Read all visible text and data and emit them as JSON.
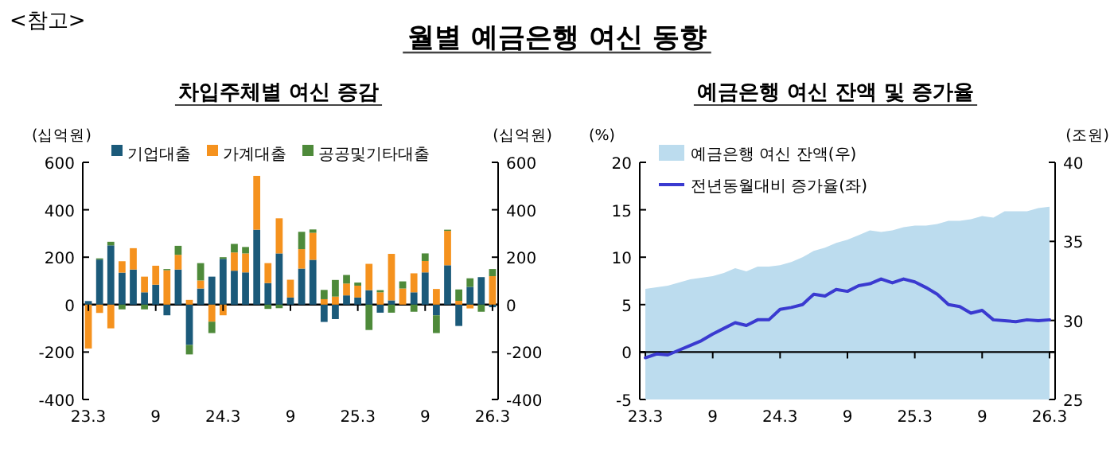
{
  "chart_data": [
    {
      "type": "other",
      "title": "월별 예금은행 여신 동향",
      "annotations": [
        "<참고>"
      ]
    },
    {
      "type": "bar",
      "title": "차입주체별 여신 증감",
      "stacked": true,
      "legend": "top",
      "ylabel": "(십억원)",
      "y2label": "(십억원)",
      "categories": [
        "23.3",
        null,
        null,
        null,
        null,
        null,
        "9",
        null,
        null,
        null,
        null,
        null,
        "24.3",
        null,
        null,
        null,
        null,
        null,
        "9",
        null,
        null,
        null,
        null,
        null,
        "25.3",
        null,
        null,
        null,
        null,
        null,
        "9",
        null,
        null,
        null,
        null,
        null,
        "26.3"
      ],
      "ylim": [
        -400,
        600
      ],
      "yticks": [
        -400,
        -200,
        0,
        200,
        400,
        600
      ],
      "y2lim": [
        -400,
        600
      ],
      "y2ticks": [
        -400,
        -200,
        0,
        200,
        400,
        600
      ],
      "series": [
        {
          "name": "기업대출",
          "color": "#1b5a7a",
          "values": [
            15,
            190,
            250,
            135,
            148,
            52,
            84,
            -45,
            148,
            -170,
            68,
            118,
            193,
            143,
            136,
            316,
            91,
            216,
            30,
            152,
            189,
            -73,
            -61,
            39,
            30,
            61,
            -34,
            18,
            null,
            52,
            136,
            -45,
            166,
            -90,
            75,
            116,
            -11
          ]
        },
        {
          "name": "가계대출",
          "color": "#f5921e",
          "values": [
            -185,
            -35,
            -100,
            48,
            90,
            66,
            80,
            145,
            62,
            20,
            34,
            -72,
            -45,
            77,
            80,
            227,
            84,
            148,
            75,
            82,
            114,
            23,
            34,
            50,
            50,
            111,
            52,
            196,
            68,
            80,
            48,
            66,
            145,
            16,
            -16,
            0,
            120
          ]
        },
        {
          "name": "공공및기타대출",
          "color": "#4e8a3a",
          "values": [
            0,
            5,
            15,
            -20,
            0,
            -20,
            0,
            5,
            38,
            -40,
            73,
            -48,
            7,
            36,
            27,
            0,
            -18,
            -15,
            null,
            73,
            14,
            39,
            70,
            36,
            13,
            -107,
            9,
            -34,
            30,
            -30,
            32,
            -75,
            5,
            48,
            36,
            -30,
            30
          ]
        }
      ]
    },
    {
      "type": "line",
      "title": "예금은행 여신 잔액 및 증가율",
      "legend": "top left",
      "ylabel": "(%)",
      "y2label": "(조원)",
      "categories": [
        "23.3",
        null,
        null,
        null,
        null,
        null,
        "9",
        null,
        null,
        null,
        null,
        null,
        "24.3",
        null,
        null,
        null,
        null,
        null,
        "9",
        null,
        null,
        null,
        null,
        null,
        "25.3",
        null,
        null,
        null,
        null,
        null,
        "9",
        null,
        null,
        null,
        null,
        null,
        "26.3"
      ],
      "ylim": [
        -5,
        20
      ],
      "yticks": [
        -5,
        0,
        5,
        10,
        15,
        20
      ],
      "y2lim": [
        25,
        40
      ],
      "y2ticks": [
        25,
        30,
        35,
        40
      ],
      "series": [
        {
          "name": "예금은행 여신 잔액(우)",
          "type": "area",
          "axis": "y2",
          "color": "#bcdcee",
          "values": [
            32.0,
            32.1,
            32.2,
            32.4,
            32.6,
            32.7,
            32.8,
            33.0,
            33.3,
            33.1,
            33.4,
            33.4,
            33.5,
            33.7,
            34.0,
            34.4,
            34.6,
            34.9,
            35.1,
            35.4,
            35.7,
            35.6,
            35.7,
            35.9,
            36.0,
            36.0,
            36.1,
            36.3,
            36.3,
            36.4,
            36.6,
            36.5,
            36.9,
            36.9,
            36.9,
            37.1,
            37.2
          ]
        },
        {
          "name": "전년동월대비 증가율(좌)",
          "type": "line",
          "color": "#3a3ad0",
          "values": [
            -0.6,
            -0.2,
            -0.3,
            0.2,
            0.7,
            1.2,
            1.9,
            2.5,
            3.1,
            2.8,
            3.4,
            3.4,
            4.5,
            4.7,
            5.0,
            6.1,
            5.9,
            6.6,
            6.4,
            7.0,
            7.2,
            7.7,
            7.3,
            7.7,
            7.4,
            6.8,
            6.1,
            5.0,
            4.8,
            4.1,
            4.4,
            3.4,
            3.3,
            3.2,
            3.4,
            3.3,
            3.4
          ]
        }
      ]
    }
  ]
}
